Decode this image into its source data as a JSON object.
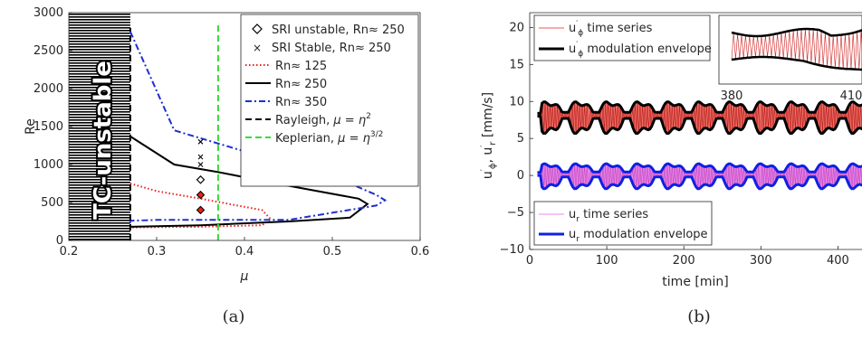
{
  "chart_data": [
    {
      "type": "line",
      "ylabel": "Re",
      "xlabel": "μ",
      "xlim": [
        0.2,
        0.6
      ],
      "ylim": [
        0,
        3000
      ],
      "xticks": [
        "0.2",
        "0.3",
        "0.4",
        "0.5",
        "0.6"
      ],
      "yticks": [
        "0",
        "500",
        "1000",
        "1500",
        "2000",
        "2500",
        "3000"
      ],
      "region_label": "TC-unstable",
      "caption": "(a)",
      "legend_position": "top-right",
      "series": [
        {
          "name": "Rn≈ 125",
          "color": "#e8231a",
          "style": "dotted",
          "x": [
            0.27,
            0.3,
            0.35,
            0.42,
            0.43,
            0.42,
            0.35,
            0.3,
            0.27
          ],
          "y": [
            750,
            650,
            550,
            400,
            280,
            200,
            180,
            175,
            170
          ]
        },
        {
          "name": "Rn≈ 250",
          "color": "#000000",
          "style": "solid",
          "x": [
            0.27,
            0.32,
            0.37,
            0.45,
            0.53,
            0.54,
            0.52,
            0.45,
            0.35,
            0.27
          ],
          "y": [
            1370,
            1000,
            900,
            720,
            550,
            480,
            300,
            250,
            200,
            180
          ]
        },
        {
          "name": "Rn≈ 350",
          "color": "#1f2fd0",
          "style": "dashdot",
          "x": [
            0.27,
            0.32,
            0.45,
            0.52,
            0.55,
            0.56,
            0.55,
            0.45,
            0.3,
            0.27,
            0.27
          ],
          "y": [
            2750,
            1450,
            1000,
            750,
            600,
            530,
            460,
            270,
            270,
            260,
            210
          ]
        },
        {
          "name": "Rayleigh, μ = η²",
          "color": "#000000",
          "style": "dashed",
          "x": [
            0.27,
            0.27
          ],
          "y": [
            0,
            2800
          ]
        },
        {
          "name": "Keplerian, μ = η³ᐟ²",
          "color": "#33dd33",
          "style": "dashed",
          "x": [
            0.37,
            0.37
          ],
          "y": [
            0,
            2850
          ]
        },
        {
          "name": "SRI unstable, Rn≈ 250",
          "marker": "diamond",
          "color": "#000000",
          "x": [
            0.35,
            0.35,
            0.35
          ],
          "y": [
            800,
            600,
            400
          ],
          "fill": [
            "#ffffff",
            "#e8231a",
            "#e8231a"
          ]
        },
        {
          "name": "SRI Stable, Rn≈ 250",
          "marker": "x",
          "color": "#000000",
          "x": [
            0.35,
            0.35,
            0.35
          ],
          "y": [
            1300,
            1100,
            1000
          ]
        }
      ]
    },
    {
      "type": "line",
      "ylabel": "u′ϕ, u′r [mm/s]",
      "xlabel": "time [min]",
      "xlim": [
        0,
        470
      ],
      "ylim": [
        -10,
        22
      ],
      "xticks": [
        "0",
        "100",
        "200",
        "300",
        "400"
      ],
      "yticks": [
        "−10",
        "−5",
        "0",
        "5",
        "10",
        "15",
        "20"
      ],
      "caption": "(b)",
      "series": [
        {
          "name": "u′ϕ time series",
          "color": "#e0201c"
        },
        {
          "name": "u′ϕ modulation envelope",
          "color": "#000000"
        },
        {
          "name": "u r time series",
          "color": "#e060e0"
        },
        {
          "name": "u r modulation envelope",
          "color": "#1020e0"
        }
      ],
      "envelope_phi": {
        "mean": 8.2,
        "amp": 1.9,
        "period": 40,
        "start": 15
      },
      "envelope_r": {
        "mean": 0.2,
        "amp": 1.5,
        "period": 40,
        "start": 15
      },
      "inset": {
        "xlim": [
          380,
          410
        ],
        "xticks": [
          "380",
          "410"
        ]
      }
    }
  ],
  "legend_a": {
    "sri_unstable": "SRI unstable, Rn≈ 250",
    "sri_stable": "SRI Stable, Rn≈ 250",
    "rn125": "Rn≈ 125",
    "rn250": "Rn≈ 250",
    "rn350": "Rn≈ 350",
    "rayleigh": "Rayleigh, ",
    "rayleigh_eq": "μ = η",
    "rayleigh_sup": "2",
    "kepler": "Keplerian, ",
    "kepler_eq": "μ = η",
    "kepler_sup": "3/2"
  },
  "legend_b_top": {
    "u1": "u",
    "u1_sup": "′",
    "u1_sub": "ϕ",
    "u1_text": " time series",
    "u2": "u",
    "u2_sup": "′",
    "u2_sub": "ϕ",
    "u2_text": " modulation envelope"
  },
  "legend_b_bot": {
    "r1": "u",
    "r1_sub": "r",
    "r1_text": " time series",
    "r2": "u",
    "r2_sub": "r",
    "r2_text": " modulation envelope"
  }
}
